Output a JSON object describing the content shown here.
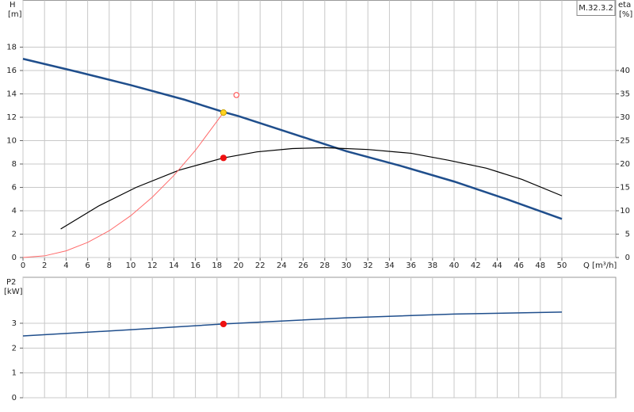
{
  "chart_data": [
    {
      "type": "line",
      "xlabel": "Q [m³/h]",
      "ylabel": "H",
      "yunit": "[m]",
      "y2label": "eta",
      "y2unit": "[%]",
      "model": "M.32.3.2",
      "xlim": [
        0,
        55
      ],
      "xticks": [
        0,
        2,
        4,
        6,
        8,
        10,
        12,
        14,
        16,
        18,
        20,
        22,
        24,
        26,
        28,
        30,
        32,
        34,
        36,
        38,
        40,
        42,
        44,
        46,
        48,
        50
      ],
      "ylim": [
        0,
        22
      ],
      "yticks": [
        0,
        2,
        4,
        6,
        8,
        10,
        12,
        14,
        16,
        18
      ],
      "y2lim": [
        0,
        55
      ],
      "y2ticks": [
        0,
        5,
        10,
        15,
        20,
        25,
        30,
        35,
        40
      ],
      "grid": true,
      "series": [
        {
          "mode": "line",
          "color": "#1f4e8c",
          "line_width": 2.5,
          "x": [
            0,
            5,
            10,
            15,
            18.6,
            20,
            25,
            30,
            35,
            40,
            45,
            50
          ],
          "values": [
            17,
            15.9,
            14.75,
            13.5,
            12.45,
            12.1,
            10.6,
            9.1,
            7.85,
            6.5,
            4.95,
            3.3
          ]
        },
        {
          "mode": "line",
          "axis": "y2",
          "color": "#000000",
          "line_width": 1.2,
          "x": [
            3.5,
            7,
            10.5,
            14.5,
            18.6,
            21.7,
            25,
            28,
            32,
            36,
            39.5,
            43,
            46.3,
            50
          ],
          "values": [
            6.1,
            11,
            15,
            18.7,
            21.3,
            22.6,
            23.3,
            23.5,
            23.1,
            22.3,
            20.8,
            19.1,
            16.7,
            13.2
          ]
        },
        {
          "mode": "line",
          "color": "#ff6a6a",
          "line_width": 1,
          "x": [
            0,
            2,
            4,
            6,
            8,
            10,
            12,
            14,
            16,
            18.6
          ],
          "values": [
            0,
            0.14,
            0.57,
            1.29,
            2.29,
            3.58,
            5.16,
            7.02,
            9.17,
            12.4
          ]
        },
        {
          "mode": "open-marker",
          "color": "#ff4040",
          "x": [
            19.8
          ],
          "values": [
            13.9
          ]
        },
        {
          "mode": "marker",
          "color": "#ffd21f",
          "x": [
            18.6
          ],
          "values": [
            12.4
          ]
        },
        {
          "mode": "marker",
          "axis": "y2",
          "color": "#ee1111",
          "x": [
            18.6
          ],
          "values": [
            21.3
          ]
        }
      ]
    },
    {
      "type": "line",
      "ylabel": "P2",
      "yunit": "[kW]",
      "xlim": [
        0,
        55
      ],
      "ylim": [
        0,
        4.85
      ],
      "yticks": [
        0,
        1,
        2,
        3
      ],
      "grid": true,
      "series": [
        {
          "mode": "line",
          "color": "#1f4e8c",
          "line_width": 1.5,
          "x": [
            0,
            10,
            18.6,
            30,
            40,
            50
          ],
          "values": [
            2.49,
            2.74,
            2.97,
            3.22,
            3.37,
            3.45
          ]
        },
        {
          "mode": "marker",
          "color": "#ee1111",
          "x": [
            18.6
          ],
          "values": [
            2.97
          ]
        }
      ]
    }
  ]
}
